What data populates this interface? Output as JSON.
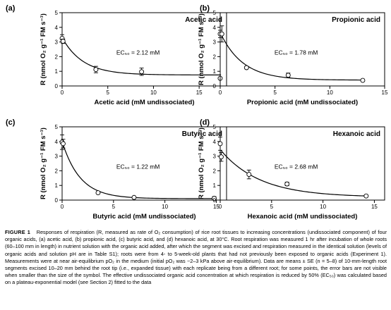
{
  "y_axis_title": "R (nmol O₂ g⁻¹ FM s⁻¹)",
  "chart_data": [
    {
      "type": "scatter",
      "panel": "(a)",
      "label": "Acetic acid",
      "ec50_text": "EC₅₀ = 2.12 mM",
      "xlabel": "Acetic acid (mM undissociated)",
      "ylabel": "R (nmol O₂ g⁻¹ FM s⁻¹)",
      "xlim": [
        0,
        18
      ],
      "ylim": [
        0,
        5
      ],
      "xticks": [
        0,
        5,
        10,
        15
      ],
      "yticks": [
        0,
        1,
        2,
        3,
        4,
        5
      ],
      "points": [
        {
          "x": 0.0,
          "y": 3.25,
          "err": 0.25
        },
        {
          "x": 0.1,
          "y": 3.05,
          "err": 0.15
        },
        {
          "x": 3.7,
          "y": 1.12,
          "err": 0.22
        },
        {
          "x": 8.7,
          "y": 0.97,
          "err": 0.25
        },
        {
          "x": 17.3,
          "y": 0.52,
          "err": 0.0
        }
      ],
      "fit": {
        "model": "plateau-exponential",
        "plateau": 0.75,
        "y0": 3.3,
        "k": 0.44
      },
      "grid": false
    },
    {
      "type": "scatter",
      "panel": "(b)",
      "label": "Propionic acid",
      "ec50_text": "EC₅₀ = 1.78 mM",
      "xlabel": "Propionic acid (mM undissociated)",
      "ylabel": "R (nmol O₂ g⁻¹ FM s⁻¹)",
      "xlim": [
        0,
        15
      ],
      "ylim": [
        0,
        5
      ],
      "xticks": [
        0,
        5,
        10,
        15
      ],
      "yticks": [
        0,
        1,
        2,
        3,
        4,
        5
      ],
      "points": [
        {
          "x": 0.0,
          "y": 3.55,
          "err": 0.25
        },
        {
          "x": 0.15,
          "y": 3.55,
          "err": 0.55
        },
        {
          "x": 2.4,
          "y": 1.25,
          "err": 0.0
        },
        {
          "x": 6.2,
          "y": 0.73,
          "err": 0.15
        },
        {
          "x": 13.0,
          "y": 0.38,
          "err": 0.0
        }
      ],
      "fit": {
        "model": "plateau-exponential",
        "plateau": 0.4,
        "y0": 3.65,
        "k": 0.49
      },
      "grid": false
    },
    {
      "type": "scatter",
      "panel": "(c)",
      "label": "Butyric acid",
      "ec50_text": "EC₅₀ = 1.22 mM",
      "xlabel": "Butyric acid (mM undissociated)",
      "ylabel": "R (nmol O₂ g⁻¹ FM s⁻¹)",
      "xlim": [
        0,
        16
      ],
      "ylim": [
        0,
        5
      ],
      "xticks": [
        0,
        5,
        10,
        15
      ],
      "yticks": [
        0,
        1,
        2,
        3,
        4,
        5
      ],
      "points": [
        {
          "x": 0.0,
          "y": 3.95,
          "err": 0.5
        },
        {
          "x": 0.1,
          "y": 3.85,
          "err": 0.3
        },
        {
          "x": 3.5,
          "y": 0.5,
          "err": 0.0
        },
        {
          "x": 7.0,
          "y": 0.18,
          "err": 0.0
        },
        {
          "x": 14.8,
          "y": 0.12,
          "err": 0.12
        }
      ],
      "fit": {
        "model": "plateau-exponential",
        "plateau": 0.1,
        "y0": 4.0,
        "k": 0.57
      },
      "grid": false
    },
    {
      "type": "scatter",
      "panel": "(d)",
      "label": "Hexanoic acid",
      "ec50_text": "EC₅₀ = 2.68 mM",
      "xlabel": "Hexanoic acid (mM undissociated)",
      "ylabel": "R (nmol O₂ g⁻¹ FM s⁻¹)",
      "xlim": [
        0,
        16
      ],
      "ylim": [
        0,
        5
      ],
      "xticks": [
        0,
        5,
        10,
        15
      ],
      "yticks": [
        0,
        1,
        2,
        3,
        4,
        5
      ],
      "points": [
        {
          "x": 0.0,
          "y": 3.85,
          "err": 0.45
        },
        {
          "x": 0.1,
          "y": 2.95,
          "err": 0.3
        },
        {
          "x": 2.8,
          "y": 1.75,
          "err": 0.3
        },
        {
          "x": 6.5,
          "y": 1.1,
          "err": 0.12
        },
        {
          "x": 14.2,
          "y": 0.28,
          "err": 0.0
        }
      ],
      "fit": {
        "model": "plateau-exponential",
        "plateau": 0.2,
        "y0": 3.45,
        "k": 0.26
      },
      "grid": false
    }
  ],
  "caption": {
    "figure_label": "FIGURE 1",
    "text": "Responses of respiration (R, measured as rate of O₂ consumption) of rice root tissues to increasing concentrations (undissociated component) of four organic acids, (a) acetic acid, (b) propionic acid, (c) butyric acid, and (d) hexanoic acid, at 30°C. Root respiration was measured 1 hr after incubation of whole roots (60–100 mm in length) in nutrient solution with the organic acid added, after which the segment was excised and respiration measured in the identical solution (levels of organic acids and solution pH are in Table S1); roots were from 4- to 5-week-old plants that had not previously been exposed to organic acids (Experiment 1). Measurements were at near air-equilibrium pO₂ in the medium (initial pO₂ was −2–3 kPa above air-equilibrium). Data are means ± SE (n = 5–8) of 10-mm-length root segments excised 10–20 mm behind the root tip (i.e., expanded tissue) with each replicate being from a different root; for some points, the error bars are not visible when smaller than the size of the symbol. The effective undissociated organic acid concentration at which respiration is reduced by 50% (EC₅₀) was calculated based on a plateau-exponential model (see Section 2) fitted to the data"
  }
}
